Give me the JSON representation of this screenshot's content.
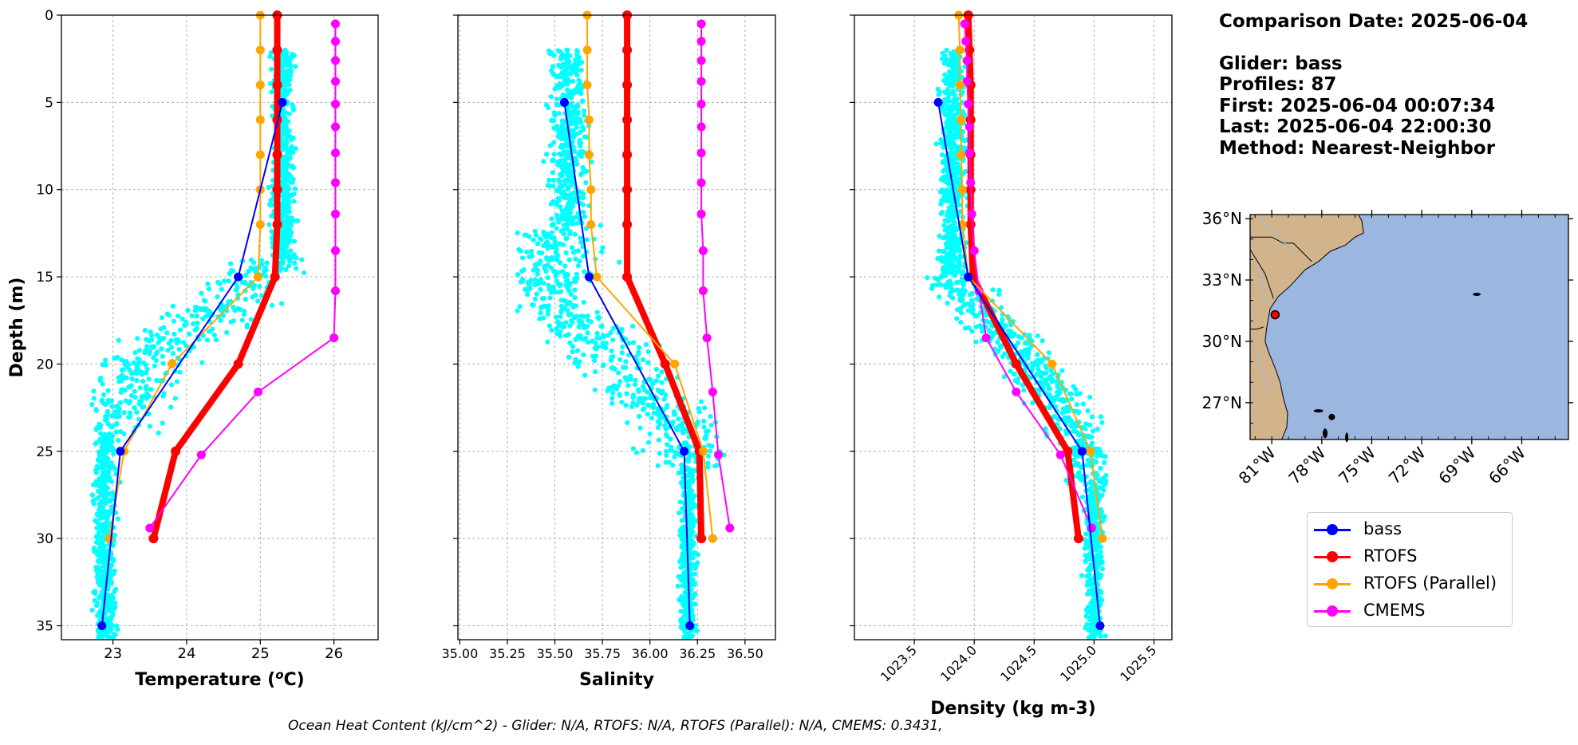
{
  "info": {
    "comparison_date": "Comparison Date: 2025-06-04",
    "glider": "Glider: bass",
    "profiles": "Profiles: 87",
    "first": "First: 2025-06-04 00:07:34",
    "last": "Last: 2025-06-04 22:00:30",
    "method": "Method: Nearest-Neighbor"
  },
  "footer": "Ocean Heat Content (kJ/cm^2) - Glider: N/A,  RTOFS: N/A,  RTOFS (Parallel): N/A,  CMEMS: 0.3431,",
  "colors": {
    "bass": "#0000ff",
    "rtofs": "#ff0000",
    "rtofs_parallel": "#ffa500",
    "cmems": "#ff00ff",
    "glider_scatter": "#00ffff",
    "land": "#d2b48c",
    "ocean": "#9bb7e0"
  },
  "legend": [
    {
      "label": "bass",
      "color": "#0000ff"
    },
    {
      "label": "RTOFS",
      "color": "#ff0000"
    },
    {
      "label": "RTOFS (Parallel)",
      "color": "#ffa500"
    },
    {
      "label": "CMEMS",
      "color": "#ff00ff"
    }
  ],
  "map": {
    "lat_ticks": [
      "36°N",
      "33°N",
      "30°N",
      "27°N"
    ],
    "lon_ticks": [
      "81°W",
      "78°W",
      "75°W",
      "72°W",
      "69°W",
      "66°W"
    ],
    "glider_location": {
      "lon": -80.8,
      "lat": 31.3
    }
  },
  "chart_data": [
    {
      "type": "line",
      "xlabel": "Temperature (°C)",
      "ylabel": "Depth (m)",
      "xlim": [
        22.3,
        26.6
      ],
      "ylim": [
        35.8,
        0
      ],
      "x_ticks": [
        23,
        24,
        25,
        26
      ],
      "y_ticks": [
        0,
        5,
        10,
        15,
        20,
        25,
        30,
        35
      ],
      "grid": true,
      "scatter": {
        "name": "glider profiles",
        "depth_range": [
          2,
          36
        ],
        "x_range": [
          22.7,
          25.6
        ]
      },
      "series": [
        {
          "name": "bass",
          "depth": [
            5,
            15,
            25,
            35
          ],
          "values": [
            25.3,
            24.7,
            23.1,
            22.85
          ]
        },
        {
          "name": "RTOFS",
          "depth": [
            0,
            2,
            4,
            6,
            8,
            10,
            12,
            15,
            20,
            25,
            30
          ],
          "values": [
            25.23,
            25.23,
            25.23,
            25.23,
            25.23,
            25.23,
            25.23,
            25.2,
            24.7,
            23.85,
            23.55
          ]
        },
        {
          "name": "RTOFS (Parallel)",
          "depth": [
            0,
            2,
            4,
            6,
            8,
            10,
            12,
            15,
            20,
            25,
            30
          ],
          "values": [
            25.0,
            25.0,
            25.0,
            25.0,
            25.0,
            25.0,
            25.0,
            24.97,
            23.8,
            23.15,
            22.95
          ]
        },
        {
          "name": "CMEMS",
          "depth": [
            0.5,
            1.5,
            2.6,
            3.8,
            5.1,
            6.4,
            7.9,
            9.6,
            11.4,
            13.5,
            15.8,
            18.5,
            21.6,
            25.2,
            29.4
          ],
          "values": [
            26.02,
            26.02,
            26.02,
            26.02,
            26.02,
            26.02,
            26.02,
            26.02,
            26.02,
            26.02,
            26.02,
            26.0,
            24.97,
            24.2,
            23.5
          ]
        }
      ]
    },
    {
      "type": "line",
      "xlabel": "Salinity",
      "xlim": [
        34.99,
        36.66
      ],
      "ylim": [
        35.8,
        0
      ],
      "x_ticks": [
        "35.00",
        "35.25",
        "35.50",
        "35.75",
        "36.00",
        "36.25",
        "36.50"
      ],
      "grid": true,
      "scatter": {
        "name": "glider profiles",
        "depth_range": [
          2,
          36
        ],
        "x_range": [
          35.3,
          36.4
        ]
      },
      "series": [
        {
          "name": "bass",
          "depth": [
            5,
            15,
            25,
            35
          ],
          "values": [
            35.55,
            35.68,
            36.18,
            36.21
          ]
        },
        {
          "name": "RTOFS",
          "depth": [
            0,
            2,
            4,
            6,
            8,
            10,
            12,
            15,
            20,
            25,
            30
          ],
          "values": [
            35.88,
            35.88,
            35.88,
            35.88,
            35.88,
            35.88,
            35.88,
            35.88,
            36.08,
            36.26,
            36.27
          ]
        },
        {
          "name": "RTOFS (Parallel)",
          "depth": [
            0,
            2,
            4,
            6,
            8,
            10,
            12,
            15,
            20,
            25,
            30
          ],
          "values": [
            35.67,
            35.67,
            35.67,
            35.68,
            35.68,
            35.69,
            35.69,
            35.72,
            36.13,
            36.28,
            36.33
          ]
        },
        {
          "name": "CMEMS",
          "depth": [
            0.5,
            1.5,
            2.6,
            3.8,
            5.1,
            6.4,
            7.9,
            9.6,
            11.4,
            13.5,
            15.8,
            18.5,
            21.6,
            25.2,
            29.4
          ],
          "values": [
            36.27,
            36.27,
            36.27,
            36.27,
            36.27,
            36.27,
            36.27,
            36.27,
            36.27,
            36.28,
            36.28,
            36.3,
            36.33,
            36.36,
            36.42
          ]
        }
      ]
    },
    {
      "type": "line",
      "xlabel": "Density (kg m-3)",
      "xlim": [
        1023.0,
        1025.65
      ],
      "ylim": [
        35.8,
        0
      ],
      "x_ticks": [
        "1023.5",
        "1024.0",
        "1024.5",
        "1025.0",
        "1025.5"
      ],
      "grid": true,
      "scatter": {
        "name": "glider profiles",
        "depth_range": [
          2,
          36
        ],
        "x_range": [
          1023.5,
          1025.1
        ]
      },
      "series": [
        {
          "name": "bass",
          "depth": [
            5,
            15,
            25,
            35
          ],
          "values": [
            1023.7,
            1023.95,
            1024.9,
            1025.05
          ]
        },
        {
          "name": "RTOFS",
          "depth": [
            0,
            2,
            4,
            6,
            8,
            10,
            12,
            15,
            20,
            25,
            30
          ],
          "values": [
            1023.95,
            1023.96,
            1023.97,
            1023.97,
            1023.97,
            1023.97,
            1023.97,
            1023.99,
            1024.35,
            1024.78,
            1024.87
          ]
        },
        {
          "name": "RTOFS (Parallel)",
          "depth": [
            0,
            2,
            4,
            6,
            8,
            10,
            12,
            15,
            20,
            25,
            30
          ],
          "values": [
            1023.87,
            1023.88,
            1023.88,
            1023.89,
            1023.89,
            1023.9,
            1023.9,
            1023.95,
            1024.65,
            1024.97,
            1025.07
          ]
        },
        {
          "name": "CMEMS",
          "depth": [
            0.5,
            1.5,
            2.6,
            3.8,
            5.1,
            6.4,
            7.9,
            9.6,
            11.4,
            13.5,
            15.8,
            18.5,
            21.6,
            25.2,
            29.4
          ],
          "values": [
            1023.92,
            1023.93,
            1023.94,
            1023.94,
            1023.95,
            1023.96,
            1023.96,
            1023.97,
            1023.98,
            1024.0,
            1024.04,
            1024.1,
            1024.35,
            1024.72,
            1024.98
          ]
        }
      ]
    }
  ]
}
